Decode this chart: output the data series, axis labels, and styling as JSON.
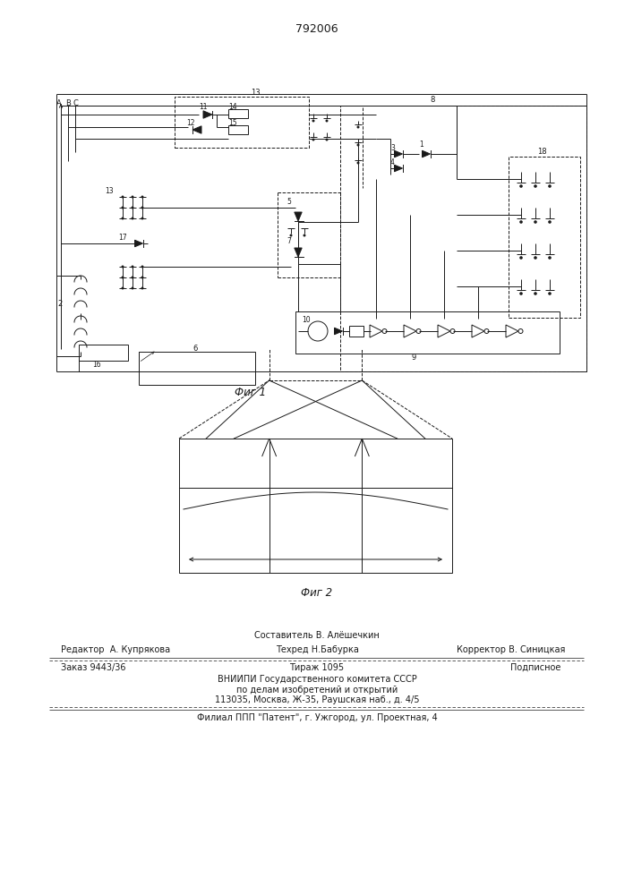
{
  "patent_number": "792006",
  "fig1_caption": "Фиг 1",
  "fig2_caption": "Фиг 2",
  "footer_line1_center": "Составитель В. Алёшечкин",
  "footer_line2_left": "Редактор  А. Купрякова",
  "footer_line2_center": "Техред Н.Бабурка",
  "footer_line2_right": "Корректор В. Синицкая",
  "footer_line3_left": "Заказ 9443/36",
  "footer_line3_center": "Тираж 1095",
  "footer_line3_right": "Подписное",
  "footer_line4": "ВНИИПИ Государственного комитета СССР",
  "footer_line5": "по делам изобретений и открытий",
  "footer_line6": "113035, Москва, Ж-35, Раушская наб., д. 4/5",
  "footer_line7": "Филиал ППП \"Патент\", г. Ужгород, ул. Проектная, 4",
  "bg_color": "#ffffff",
  "line_color": "#1a1a1a"
}
